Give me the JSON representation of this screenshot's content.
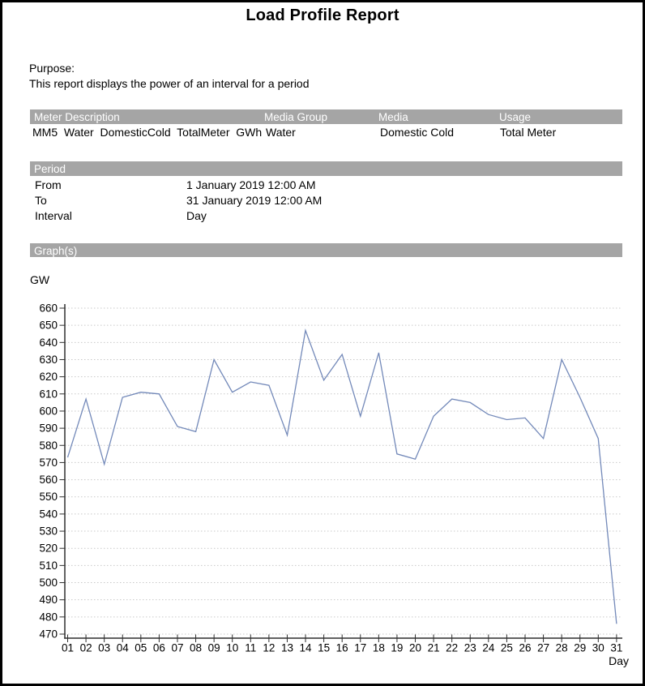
{
  "title": "Load Profile Report",
  "purpose": {
    "label": "Purpose:",
    "text": "This report displays the power of an interval for a period"
  },
  "meter_table": {
    "headers": [
      "Meter Description",
      "Media Group",
      "Media",
      "Usage"
    ],
    "row": {
      "meter_description": "MM5  Water  DomesticCold  TotalMeter  GWh",
      "media_group": "Water",
      "media": "Domestic Cold",
      "usage": "Total Meter"
    }
  },
  "period": {
    "header": "Period",
    "from_label": "From",
    "from_value": "1 January 2019 12:00 AM",
    "to_label": "To",
    "to_value": "31 January 2019 12:00 AM",
    "interval_label": "Interval",
    "interval_value": "Day"
  },
  "graphs": {
    "header": "Graph(s)"
  },
  "colors": {
    "section_header_bg": "#a5a5a5",
    "section_header_text": "#ffffff",
    "line": "#7389b9",
    "gridline": "#c9c9c9",
    "axis": "#2e2e2e",
    "tick_text": "#000000"
  },
  "chart_data": {
    "type": "line",
    "title": "",
    "unit_label": "GW",
    "xlabel": "Day",
    "ylabel": "GW",
    "categories": [
      "01",
      "02",
      "03",
      "04",
      "05",
      "06",
      "07",
      "08",
      "09",
      "10",
      "11",
      "12",
      "13",
      "14",
      "15",
      "16",
      "17",
      "18",
      "19",
      "20",
      "21",
      "22",
      "23",
      "24",
      "25",
      "26",
      "27",
      "28",
      "29",
      "30",
      "31"
    ],
    "values": [
      573,
      607,
      569,
      608,
      611,
      610,
      591,
      588,
      630,
      611,
      617,
      615,
      586,
      647,
      618,
      633,
      597,
      634,
      575,
      572,
      597,
      607,
      605,
      598,
      595,
      596,
      584,
      630,
      608,
      584,
      476
    ],
    "ylim": [
      470,
      660
    ],
    "ytick_step": 10,
    "grid": "horizontal-dotted",
    "legend": "none"
  }
}
